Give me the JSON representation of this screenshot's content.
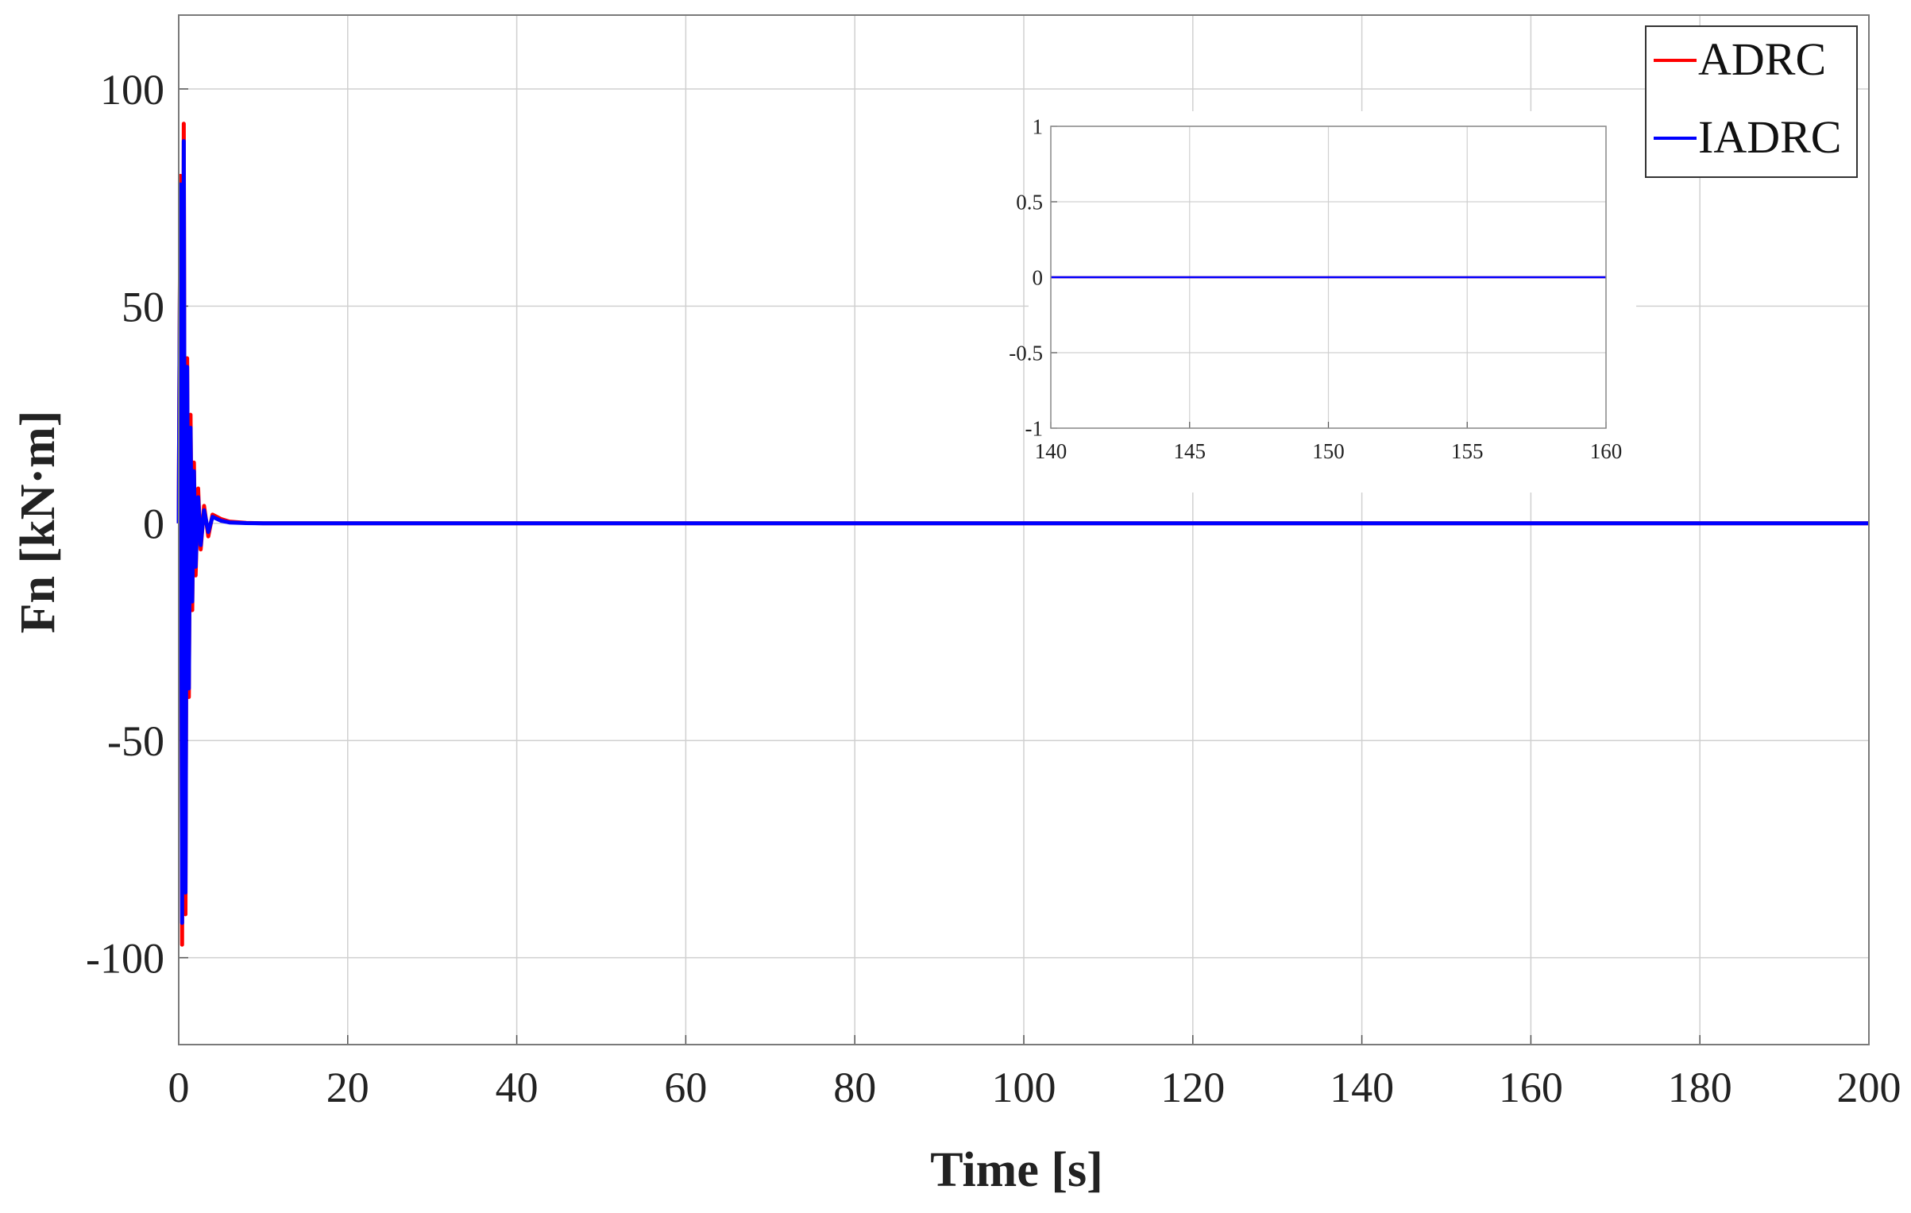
{
  "chart_data": [
    {
      "type": "line",
      "title": "",
      "xlabel": "Time [s]",
      "ylabel": "Fn [kN·m]",
      "xlim": [
        0,
        200
      ],
      "ylim": [
        -120,
        117
      ],
      "xticks": [
        0,
        20,
        40,
        60,
        80,
        100,
        120,
        140,
        160,
        180,
        200
      ],
      "yticks": [
        -100,
        -50,
        0,
        50,
        100
      ],
      "xtick_labels": [
        "0",
        "20",
        "40",
        "60",
        "80",
        "100",
        "120",
        "140",
        "160",
        "180",
        "200"
      ],
      "ytick_labels": [
        "-100",
        "-50",
        "0",
        "50",
        "100"
      ],
      "grid": true,
      "legend_position": "top-right",
      "series": [
        {
          "name": "ADRC",
          "color": "#ff0000",
          "x": [
            0,
            0.2,
            0.4,
            0.6,
            0.8,
            1.0,
            1.2,
            1.4,
            1.6,
            1.8,
            2.0,
            2.3,
            2.6,
            3.0,
            3.5,
            4.0,
            5.0,
            6.0,
            8.0,
            10,
            200
          ],
          "y": [
            0,
            80,
            -97,
            92,
            -90,
            38,
            -40,
            25,
            -20,
            14,
            -12,
            8,
            -6,
            4,
            -3,
            2,
            1,
            0.4,
            0.1,
            0,
            0
          ]
        },
        {
          "name": "IADRC",
          "color": "#0000ff",
          "x": [
            0,
            0.2,
            0.4,
            0.6,
            0.8,
            1.0,
            1.2,
            1.4,
            1.6,
            1.8,
            2.0,
            2.3,
            2.6,
            3.0,
            3.5,
            4.0,
            5.0,
            6.0,
            8.0,
            10,
            200
          ],
          "y": [
            0,
            78,
            -92,
            88,
            -85,
            36,
            -38,
            22,
            -18,
            12,
            -10,
            6,
            -5,
            3,
            -2,
            1.5,
            0.6,
            0.2,
            0.05,
            0,
            0
          ]
        }
      ]
    },
    {
      "type": "line",
      "title": "",
      "xlabel": "",
      "ylabel": "",
      "xlim": [
        140,
        160
      ],
      "ylim": [
        -1,
        1
      ],
      "xticks": [
        140,
        145,
        150,
        155,
        160
      ],
      "yticks": [
        -1,
        -0.5,
        0,
        0.5,
        1
      ],
      "xtick_labels": [
        "140",
        "145",
        "150",
        "155",
        "160"
      ],
      "ytick_labels": [
        "-1",
        "-0.5",
        "0",
        "0.5",
        "1"
      ],
      "grid": true,
      "series": [
        {
          "color": "#ff0000",
          "x": [
            140,
            160
          ],
          "y": [
            0,
            0
          ]
        },
        {
          "color": "#0000ff",
          "x": [
            140,
            160
          ],
          "y": [
            0,
            0
          ]
        }
      ]
    }
  ]
}
